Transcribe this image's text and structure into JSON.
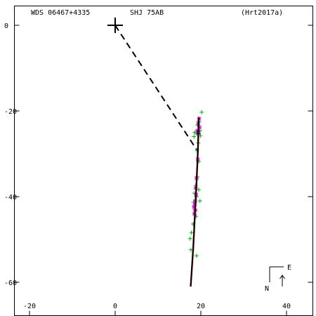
{
  "header": {
    "system": "WDS 06467+4335",
    "pair": "SHJ  75AB",
    "reference": "(Hrt2017a)"
  },
  "compass": {
    "east_label": "E",
    "north_label": "N"
  },
  "chart_data": {
    "type": "scatter",
    "title": "",
    "xlabel": "",
    "ylabel": "",
    "xlim": [
      -25,
      47
    ],
    "ylim": [
      -65,
      5
    ],
    "xticks": [
      -20,
      0,
      20,
      40
    ],
    "yticks": [
      0,
      -20,
      -40,
      -60
    ],
    "primary": {
      "x": 0,
      "y": 0
    },
    "orbit_fit": [
      [
        17.6,
        -61.0
      ],
      [
        18.2,
        -52.0
      ],
      [
        18.6,
        -44.0
      ],
      [
        19.0,
        -36.0
      ],
      [
        19.3,
        -29.0
      ],
      [
        19.5,
        -21.5
      ]
    ],
    "node_line": [
      [
        0,
        0
      ],
      [
        19.0,
        -29.0
      ]
    ],
    "series": [
      {
        "marker": "+",
        "color": "#00aa00",
        "points": [
          [
            20.2,
            -20.3
          ],
          [
            19.6,
            -22.5
          ],
          [
            19.2,
            -23.3
          ],
          [
            19.8,
            -24.6
          ],
          [
            18.6,
            -25.0
          ],
          [
            19.0,
            -25.3
          ],
          [
            19.9,
            -25.8
          ],
          [
            18.4,
            -26.0
          ],
          [
            19.4,
            -27.5
          ],
          [
            19.1,
            -29.2
          ],
          [
            19.5,
            -31.8
          ],
          [
            19.2,
            -35.4
          ],
          [
            18.8,
            -37.4
          ],
          [
            19.5,
            -38.4
          ],
          [
            18.5,
            -39.2
          ],
          [
            19.0,
            -40.0
          ],
          [
            19.8,
            -41.0
          ],
          [
            18.3,
            -41.3
          ],
          [
            18.6,
            -43.0
          ],
          [
            18.9,
            -44.6
          ],
          [
            18.2,
            -46.4
          ],
          [
            17.8,
            -48.4
          ],
          [
            17.5,
            -49.8
          ],
          [
            17.7,
            -52.4
          ],
          [
            19.0,
            -53.8
          ]
        ]
      },
      {
        "marker": "*",
        "color": "#dd00dd",
        "points": [
          [
            19.6,
            -21.8
          ],
          [
            19.4,
            -22.8
          ],
          [
            19.7,
            -23.8
          ],
          [
            19.2,
            -24.6
          ],
          [
            19.5,
            -25.2
          ],
          [
            19.3,
            -31.3
          ],
          [
            19.0,
            -35.7
          ],
          [
            18.8,
            -38.0
          ],
          [
            18.9,
            -39.5
          ],
          [
            18.7,
            -41.0
          ],
          [
            18.6,
            -41.8
          ],
          [
            18.4,
            -42.4
          ],
          [
            18.7,
            -43.2
          ],
          [
            18.5,
            -44.0
          ]
        ]
      },
      {
        "marker": "x",
        "color": "#0000cc",
        "points": [
          [
            19.4,
            -25.0
          ]
        ]
      }
    ]
  }
}
